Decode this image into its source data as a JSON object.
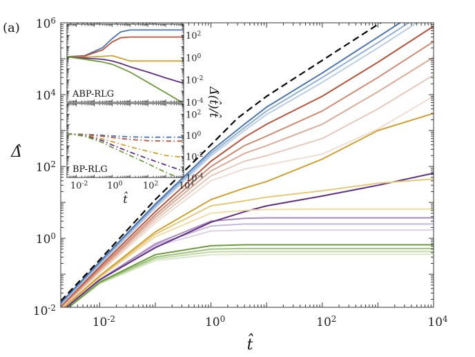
{
  "panel_label": "(a)",
  "chart_data": [
    {
      "type": "line",
      "xlabel": "t̂",
      "ylabel": "Δ̂",
      "xscale": "log",
      "yscale": "log",
      "xlim": [
        0.002,
        10000
      ],
      "ylim": [
        0.012,
        1000000
      ],
      "xticks": [
        0.01,
        1,
        100,
        10000
      ],
      "xtick_labels": [
        [
          "10",
          "-2"
        ],
        [
          "10",
          "0"
        ],
        [
          "10",
          "2"
        ],
        [
          "10",
          "4"
        ]
      ],
      "yticks": [
        0.01,
        1,
        100,
        10000,
        1000000
      ],
      "ytick_labels": [
        [
          "10",
          "-2"
        ],
        [
          "10",
          "0"
        ],
        [
          "10",
          "2"
        ],
        [
          "10",
          "4"
        ],
        [
          "10",
          "6"
        ]
      ],
      "grid": false,
      "series": [
        {
          "color": "#000000",
          "style": "dashed",
          "x": [
            0.002,
            0.01,
            0.1,
            1,
            3,
            10,
            100,
            1000,
            10000
          ],
          "y": [
            0.018,
            0.25,
            12,
            400,
            2200,
            9000,
            90000,
            900000,
            9000000
          ]
        },
        {
          "color": "#4a72b0",
          "style": "solid",
          "x": [
            0.002,
            0.01,
            0.1,
            1,
            4,
            10,
            100,
            1000,
            10000
          ],
          "y": [
            0.016,
            0.22,
            9,
            270,
            1500,
            4500,
            40000,
            400000,
            4000000
          ]
        },
        {
          "color": "#8fb0d5",
          "style": "solid",
          "x": [
            0.002,
            0.01,
            0.1,
            1,
            4,
            10,
            100,
            1000,
            10000
          ],
          "y": [
            0.015,
            0.2,
            8,
            230,
            1200,
            3500,
            30000,
            280000,
            2800000
          ]
        },
        {
          "color": "#b9cde4",
          "style": "solid",
          "x": [
            0.002,
            0.01,
            0.1,
            1,
            4,
            10,
            100,
            1000,
            10000
          ],
          "y": [
            0.014,
            0.18,
            7,
            200,
            1000,
            2800,
            22000,
            200000,
            2000000
          ]
        },
        {
          "color": "#b8523a",
          "style": "solid",
          "x": [
            0.002,
            0.01,
            0.1,
            1,
            4,
            10,
            100,
            1000,
            10000
          ],
          "y": [
            0.013,
            0.16,
            5.5,
            140,
            650,
            1500,
            9000,
            80000,
            800000
          ]
        },
        {
          "color": "#cf8a73",
          "style": "solid",
          "x": [
            0.002,
            0.01,
            0.1,
            1,
            4,
            10,
            100,
            1000,
            10000
          ],
          "y": [
            0.012,
            0.14,
            4.5,
            100,
            380,
            700,
            3500,
            30000,
            300000
          ]
        },
        {
          "color": "#dcab98",
          "style": "solid",
          "x": [
            0.002,
            0.01,
            0.1,
            1,
            4,
            10,
            100,
            1000,
            10000
          ],
          "y": [
            0.012,
            0.13,
            3.8,
            75,
            230,
            380,
            1500,
            12000,
            110000
          ]
        },
        {
          "color": "#e7c7b8",
          "style": "solid",
          "x": [
            0.002,
            0.01,
            0.1,
            1,
            4,
            10,
            100,
            1000,
            10000
          ],
          "y": [
            0.011,
            0.12,
            3.2,
            55,
            140,
            200,
            600,
            4000,
            35000
          ]
        },
        {
          "color": "#efdcd2",
          "style": "solid",
          "x": [
            0.002,
            0.01,
            0.1,
            1,
            4,
            10,
            100,
            1000,
            10000
          ],
          "y": [
            0.011,
            0.11,
            2.7,
            40,
            85,
            110,
            220,
            1100,
            9000
          ]
        },
        {
          "color": "#d0a030",
          "style": "solid",
          "x": [
            0.002,
            0.01,
            0.1,
            1,
            4,
            10,
            100,
            1000,
            10000
          ],
          "y": [
            0.01,
            0.09,
            1.5,
            12,
            25,
            38,
            160,
            1000,
            3000
          ]
        },
        {
          "color": "#e6c778",
          "style": "solid",
          "x": [
            0.002,
            0.01,
            0.1,
            1,
            4,
            10,
            100,
            1000,
            10000
          ],
          "y": [
            0.01,
            0.085,
            1.3,
            8,
            11,
            14,
            21,
            34,
            45
          ]
        },
        {
          "color": "#f0dca6",
          "style": "solid",
          "x": [
            0.002,
            0.01,
            0.1,
            1,
            4,
            10,
            100,
            1000,
            10000
          ],
          "y": [
            0.01,
            0.08,
            1.1,
            5,
            6,
            6.3,
            6.5,
            6.5,
            6.5
          ]
        },
        {
          "color": "#5e2d82",
          "style": "solid",
          "x": [
            0.002,
            0.01,
            0.1,
            1,
            4,
            10,
            100,
            1000,
            10000
          ],
          "y": [
            0.009,
            0.07,
            0.55,
            2.8,
            5.5,
            8,
            15,
            30,
            65
          ]
        },
        {
          "color": "#a98bbd",
          "style": "solid",
          "x": [
            0.002,
            0.01,
            0.1,
            1,
            4,
            10,
            100,
            1000,
            10000
          ],
          "y": [
            0.009,
            0.07,
            0.7,
            3.0,
            3.6,
            3.7,
            3.7,
            3.7,
            3.7
          ]
        },
        {
          "color": "#c9b6d6",
          "style": "solid",
          "x": [
            0.002,
            0.01,
            0.1,
            1,
            4,
            10,
            100,
            1000,
            10000
          ],
          "y": [
            0.009,
            0.068,
            0.65,
            2.2,
            2.5,
            2.5,
            2.5,
            2.5,
            2.5
          ]
        },
        {
          "color": "#ddd0e6",
          "style": "solid",
          "x": [
            0.002,
            0.01,
            0.1,
            1,
            4,
            10,
            100,
            1000,
            10000
          ],
          "y": [
            0.009,
            0.066,
            0.6,
            1.6,
            1.7,
            1.7,
            1.7,
            1.7,
            1.7
          ]
        },
        {
          "color": "#6a9a3a",
          "style": "solid",
          "x": [
            0.002,
            0.01,
            0.1,
            1,
            4,
            10,
            100,
            1000,
            10000
          ],
          "y": [
            0.008,
            0.06,
            0.35,
            0.62,
            0.66,
            0.66,
            0.66,
            0.66,
            0.66
          ]
        },
        {
          "color": "#9dc27a",
          "style": "solid",
          "x": [
            0.002,
            0.01,
            0.1,
            1,
            4,
            10,
            100,
            1000,
            10000
          ],
          "y": [
            0.008,
            0.058,
            0.3,
            0.5,
            0.52,
            0.52,
            0.52,
            0.52,
            0.52
          ]
        },
        {
          "color": "#bfd8a5",
          "style": "solid",
          "x": [
            0.002,
            0.01,
            0.1,
            1,
            4,
            10,
            100,
            1000,
            10000
          ],
          "y": [
            0.008,
            0.056,
            0.27,
            0.42,
            0.43,
            0.43,
            0.43,
            0.43,
            0.43
          ]
        },
        {
          "color": "#d8e8c6",
          "style": "solid",
          "x": [
            0.002,
            0.01,
            0.1,
            1,
            4,
            10,
            100,
            1000,
            10000
          ],
          "y": [
            0.008,
            0.054,
            0.24,
            0.35,
            0.36,
            0.36,
            0.36,
            0.36,
            0.36
          ]
        }
      ]
    },
    {
      "type": "line",
      "title": "ABP-RLG",
      "ylabel": "Δ̂(t̂)/t̂",
      "xscale": "log",
      "yscale": "log",
      "xlim": [
        0.003,
        10000
      ],
      "ylim": [
        0.0001,
        1000
      ],
      "yticks": [
        0.0001,
        0.01,
        1,
        100
      ],
      "ytick_labels": [
        [
          "10",
          "-4"
        ],
        [
          "10",
          "-2"
        ],
        [
          "10",
          "0"
        ],
        [
          "10",
          "2"
        ]
      ],
      "series": [
        {
          "color": "#4a72b0",
          "style": "solid",
          "x": [
            0.003,
            0.03,
            0.3,
            1,
            3,
            10,
            10000
          ],
          "y": [
            1.2,
            1.5,
            8,
            50,
            200,
            300,
            300
          ]
        },
        {
          "color": "#b8523a",
          "style": "solid",
          "x": [
            0.003,
            0.03,
            0.3,
            1,
            3,
            10,
            10000
          ],
          "y": [
            1.2,
            1.4,
            5,
            25,
            60,
            70,
            70
          ]
        },
        {
          "color": "#d0a030",
          "style": "solid",
          "x": [
            0.003,
            0.03,
            0.3,
            1,
            3,
            10,
            10000
          ],
          "y": [
            1.2,
            1.1,
            1.3,
            1.5,
            0.9,
            0.5,
            0.5
          ]
        },
        {
          "color": "#5e2d82",
          "style": "solid",
          "x": [
            0.003,
            0.03,
            0.3,
            1,
            3,
            10,
            100,
            1000,
            10000
          ],
          "y": [
            1.2,
            0.9,
            0.7,
            0.5,
            0.3,
            0.15,
            0.05,
            0.015,
            0.005
          ]
        },
        {
          "color": "#6a9a3a",
          "style": "solid",
          "x": [
            0.003,
            0.03,
            0.3,
            1,
            3,
            10,
            100,
            1000,
            10000
          ],
          "y": [
            1.2,
            0.7,
            0.4,
            0.25,
            0.12,
            0.05,
            0.006,
            0.0007,
            8e-05
          ]
        }
      ]
    },
    {
      "type": "line",
      "title": "BP-RLG",
      "xlabel": "t̂",
      "xscale": "log",
      "yscale": "log",
      "xlim": [
        0.003,
        10000
      ],
      "ylim": [
        0.0001,
        1000
      ],
      "xticks": [
        0.01,
        1,
        100,
        10000
      ],
      "xtick_labels": [
        [
          "10",
          "-2"
        ],
        [
          "10",
          "0"
        ],
        [
          "10",
          "2"
        ],
        [
          "10",
          "4"
        ]
      ],
      "yticks": [
        0.0001,
        0.01,
        1,
        100
      ],
      "ytick_labels": [
        [
          "10",
          "-4"
        ],
        [
          "10",
          "-2"
        ],
        [
          "10",
          "0"
        ],
        [
          "10",
          "2"
        ]
      ],
      "series": [
        {
          "color": "#4a72b0",
          "style": "dashdot",
          "x": [
            0.003,
            0.03,
            0.3,
            1,
            10,
            100,
            1000,
            10000
          ],
          "y": [
            1.4,
            1.2,
            1.0,
            0.85,
            0.7,
            0.65,
            0.65,
            0.65
          ]
        },
        {
          "color": "#b8523a",
          "style": "dashdot",
          "x": [
            0.003,
            0.03,
            0.3,
            1,
            10,
            100,
            1000,
            10000
          ],
          "y": [
            1.4,
            1.1,
            0.8,
            0.6,
            0.4,
            0.3,
            0.28,
            0.28
          ]
        },
        {
          "color": "#d0a030",
          "style": "dashdot",
          "x": [
            0.003,
            0.03,
            0.3,
            1,
            10,
            100,
            1000,
            10000
          ],
          "y": [
            1.4,
            1.0,
            0.45,
            0.25,
            0.08,
            0.03,
            0.012,
            0.008
          ]
        },
        {
          "color": "#5e2d82",
          "style": "dashdot",
          "x": [
            0.003,
            0.03,
            0.3,
            1,
            10,
            100,
            1000,
            10000
          ],
          "y": [
            1.4,
            0.9,
            0.3,
            0.12,
            0.025,
            0.006,
            0.0015,
            0.0004
          ]
        },
        {
          "color": "#6a9a3a",
          "style": "dashdot",
          "x": [
            0.003,
            0.03,
            0.3,
            1,
            10,
            100,
            1000,
            10000
          ],
          "y": [
            1.4,
            0.8,
            0.2,
            0.07,
            0.012,
            0.002,
            0.0003,
            6e-05
          ]
        }
      ]
    }
  ]
}
